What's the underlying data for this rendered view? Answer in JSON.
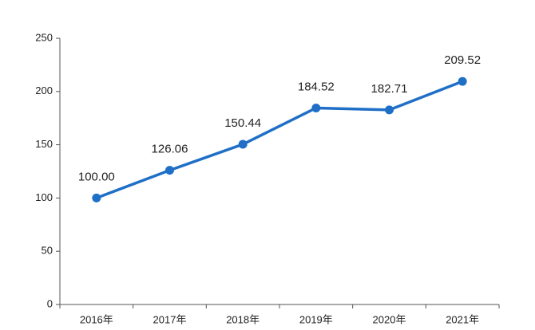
{
  "chart_data": {
    "type": "line",
    "categories": [
      "2016年",
      "2017年",
      "2018年",
      "2019年",
      "2020年",
      "2021年"
    ],
    "series": [
      {
        "color": "#1f6fc6",
        "values": [
          100,
          126.06,
          150.44,
          184.52,
          182.71,
          209.52
        ],
        "value_labels": [
          "100.00",
          "126.06",
          "150.44",
          "184.52",
          "182.71",
          "209.52"
        ]
      }
    ],
    "ylim": [
      0,
      250
    ],
    "yticks": [
      0,
      50,
      100,
      150,
      200,
      250
    ],
    "grid": false
  }
}
